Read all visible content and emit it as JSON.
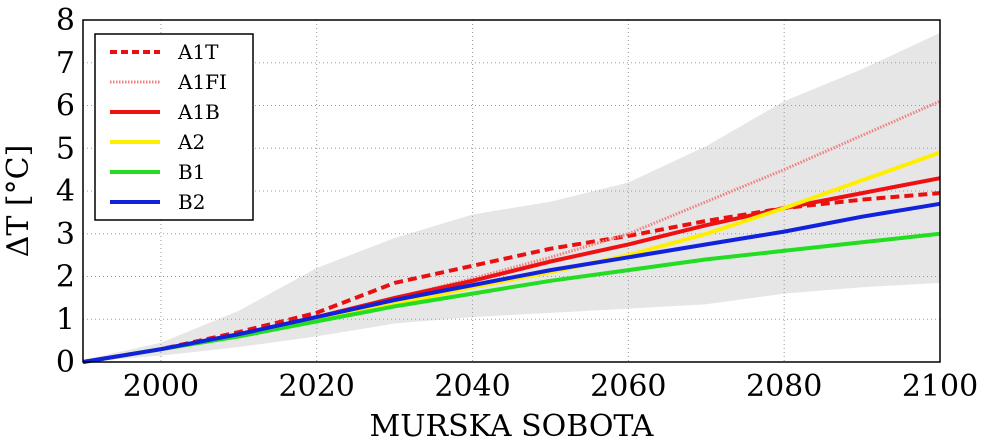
{
  "chart_data": {
    "type": "line",
    "title": "",
    "xlabel": "MURSKA SOBOTA",
    "ylabel": "ΔT [°C]",
    "xlim": [
      1990,
      2100
    ],
    "ylim": [
      0,
      8
    ],
    "xticks": [
      2000,
      2020,
      2040,
      2060,
      2080,
      2100
    ],
    "yticks": [
      0,
      1,
      2,
      3,
      4,
      5,
      6,
      7,
      8
    ],
    "grid": true,
    "legend_position": "top-left",
    "uncertainty_band": {
      "color": "#e6e6e6",
      "x": [
        1990,
        2000,
        2010,
        2020,
        2030,
        2040,
        2050,
        2060,
        2070,
        2080,
        2090,
        2100
      ],
      "upper": [
        0.05,
        0.45,
        1.2,
        2.2,
        2.9,
        3.45,
        3.75,
        4.2,
        5.05,
        6.1,
        6.85,
        7.7
      ],
      "lower": [
        0.0,
        0.15,
        0.35,
        0.6,
        0.9,
        1.05,
        1.15,
        1.25,
        1.35,
        1.6,
        1.75,
        1.85
      ]
    },
    "series": [
      {
        "name": "A1T",
        "color": "#e81010",
        "dash": "dashed",
        "x": [
          1990,
          2000,
          2010,
          2020,
          2030,
          2040,
          2050,
          2060,
          2070,
          2080,
          2090,
          2100
        ],
        "values": [
          0,
          0.3,
          0.7,
          1.15,
          1.85,
          2.25,
          2.65,
          2.95,
          3.3,
          3.6,
          3.8,
          3.95
        ]
      },
      {
        "name": "A1FI",
        "color": "#f08080",
        "dash": "dotted",
        "x": [
          1990,
          2000,
          2010,
          2020,
          2030,
          2040,
          2050,
          2060,
          2070,
          2080,
          2090,
          2100
        ],
        "values": [
          0,
          0.3,
          0.65,
          1.05,
          1.5,
          1.95,
          2.45,
          3.0,
          3.75,
          4.5,
          5.3,
          6.1
        ]
      },
      {
        "name": "A1B",
        "color": "#ee1111",
        "dash": "solid",
        "x": [
          1990,
          2000,
          2010,
          2020,
          2030,
          2040,
          2050,
          2060,
          2070,
          2080,
          2090,
          2100
        ],
        "values": [
          0,
          0.3,
          0.65,
          1.05,
          1.5,
          1.9,
          2.35,
          2.75,
          3.2,
          3.6,
          3.95,
          4.3
        ]
      },
      {
        "name": "A2",
        "color": "#ffee00",
        "dash": "solid",
        "x": [
          1990,
          2000,
          2010,
          2020,
          2030,
          2040,
          2050,
          2060,
          2070,
          2080,
          2090,
          2100
        ],
        "values": [
          0,
          0.3,
          0.6,
          1.0,
          1.35,
          1.75,
          2.1,
          2.5,
          3.0,
          3.6,
          4.25,
          4.9
        ]
      },
      {
        "name": "B1",
        "color": "#22dd22",
        "dash": "solid",
        "x": [
          1990,
          2000,
          2010,
          2020,
          2030,
          2040,
          2050,
          2060,
          2070,
          2080,
          2090,
          2100
        ],
        "values": [
          0,
          0.3,
          0.6,
          0.95,
          1.3,
          1.6,
          1.9,
          2.15,
          2.4,
          2.6,
          2.8,
          3.0
        ]
      },
      {
        "name": "B2",
        "color": "#1122dd",
        "dash": "solid",
        "x": [
          1990,
          2000,
          2010,
          2020,
          2030,
          2040,
          2050,
          2060,
          2070,
          2080,
          2090,
          2100
        ],
        "values": [
          0,
          0.3,
          0.65,
          1.05,
          1.45,
          1.8,
          2.15,
          2.45,
          2.75,
          3.05,
          3.4,
          3.7
        ]
      }
    ]
  }
}
